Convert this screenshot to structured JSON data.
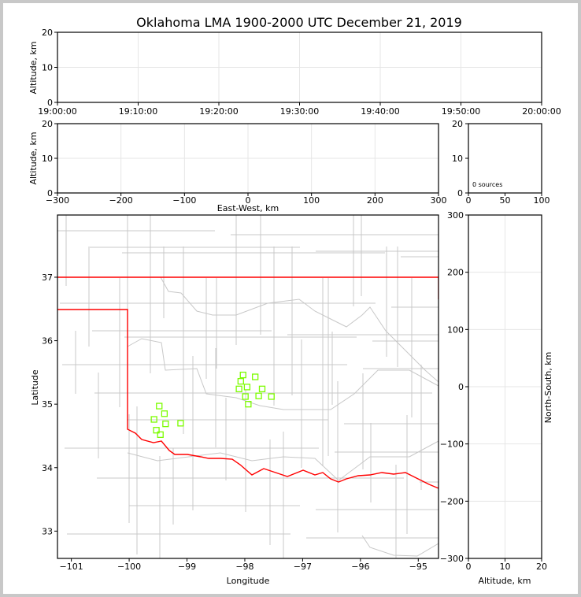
{
  "chart_data": [
    {
      "type": "scatter",
      "panel": "time-altitude",
      "title": "Oklahoma LMA 1900-2000 UTC December 21, 2019",
      "xlabel": "",
      "ylabel": "Altitude, km",
      "xticks": [
        "19:00:00",
        "19:10:00",
        "19:20:00",
        "19:30:00",
        "19:40:00",
        "19:50:00",
        "20:00:00"
      ],
      "ylim": [
        0,
        20
      ],
      "yticks": [
        "0",
        "10",
        "20"
      ],
      "grid": true,
      "points": []
    },
    {
      "type": "scatter",
      "panel": "eastwest-altitude",
      "xlabel": "East-West, km",
      "ylabel": "Altitude, km",
      "xlim": [
        -300,
        300
      ],
      "xticks": [
        "−300",
        "−200",
        "−100",
        "0",
        "100",
        "200",
        "300"
      ],
      "ylim": [
        0,
        20
      ],
      "yticks": [
        "0",
        "10",
        "20"
      ],
      "grid": true,
      "points": []
    },
    {
      "type": "bar",
      "panel": "altitude-histogram",
      "xlim": [
        0,
        100
      ],
      "xticks": [
        "0",
        "50",
        "100"
      ],
      "ylim": [
        0,
        20
      ],
      "yticks": [
        "0",
        "10",
        "20"
      ],
      "annotation": "0 sources",
      "values": []
    },
    {
      "type": "scatter",
      "panel": "plan-view",
      "xlabel": "Longitude",
      "ylabel": "Latitude",
      "xlim": [
        -101.24,
        -94.65
      ],
      "ylim": [
        32.57,
        37.98
      ],
      "xticks": [
        "−101",
        "−100",
        "−99",
        "−98",
        "−97",
        "−96",
        "−95"
      ],
      "yticks": [
        "33",
        "34",
        "35",
        "36",
        "37"
      ],
      "marker_color": "#7cfc00",
      "border_color": "#ff0000",
      "county_color": "#c8c8c8",
      "points": [
        {
          "lon": -98.03,
          "lat": 35.46
        },
        {
          "lon": -97.82,
          "lat": 35.43
        },
        {
          "lon": -98.07,
          "lat": 35.36
        },
        {
          "lon": -98.1,
          "lat": 35.24
        },
        {
          "lon": -97.96,
          "lat": 35.27
        },
        {
          "lon": -97.7,
          "lat": 35.24
        },
        {
          "lon": -97.99,
          "lat": 35.12
        },
        {
          "lon": -97.76,
          "lat": 35.13
        },
        {
          "lon": -97.54,
          "lat": 35.12
        },
        {
          "lon": -97.94,
          "lat": 35.0
        },
        {
          "lon": -99.48,
          "lat": 34.97
        },
        {
          "lon": -99.39,
          "lat": 34.85
        },
        {
          "lon": -99.57,
          "lat": 34.76
        },
        {
          "lon": -99.37,
          "lat": 34.69
        },
        {
          "lon": -99.11,
          "lat": 34.7
        },
        {
          "lon": -99.53,
          "lat": 34.59
        },
        {
          "lon": -99.46,
          "lat": 34.52
        }
      ]
    },
    {
      "type": "scatter",
      "panel": "altitude-northsouth",
      "xlabel": "Altitude, km",
      "ylabel": "North-South, km",
      "xlim": [
        0,
        20
      ],
      "xticks": [
        "0",
        "10",
        "20"
      ],
      "ylim": [
        -300,
        300
      ],
      "yticks": [
        "−300",
        "−200",
        "−100",
        "0",
        "100",
        "200",
        "300"
      ],
      "grid": true,
      "points": []
    }
  ]
}
